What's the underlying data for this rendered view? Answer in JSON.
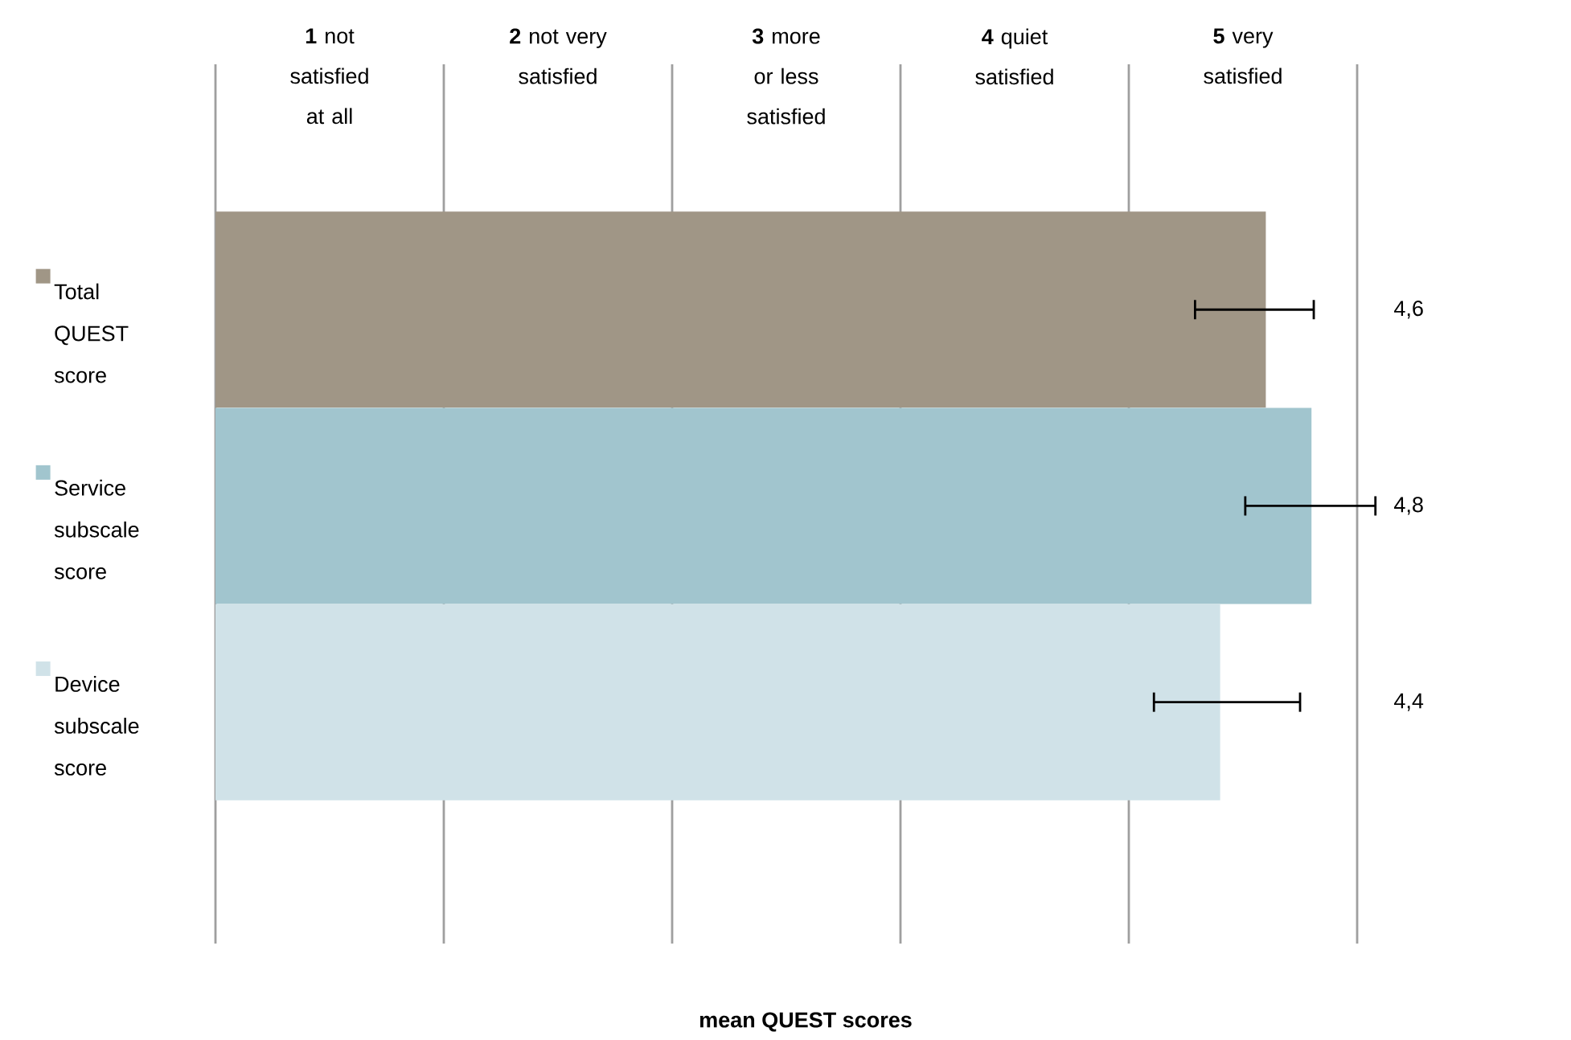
{
  "chart_data": {
    "type": "bar",
    "orientation": "horizontal",
    "xlabel": "mean QUEST scores",
    "categories": [
      "Total QUEST score",
      "Service subscale score",
      "Device subscale score"
    ],
    "values": [
      4.6,
      4.8,
      4.4
    ],
    "colors": [
      "#a09686",
      "#a1c5ce",
      "#d0e2e8"
    ],
    "errors": [
      [
        4.29,
        4.81
      ],
      [
        4.51,
        5.08
      ],
      [
        4.11,
        4.75
      ]
    ],
    "value_labels": [
      "4,6",
      "4,8",
      "4,4"
    ],
    "xlim": [
      0,
      5
    ],
    "xticks": [
      {
        "value": 0,
        "label": null
      },
      {
        "value": 0.5,
        "label": "**1** not satisfied at all"
      },
      {
        "value": 1,
        "label": null
      },
      {
        "value": 1.5,
        "label": "**2** not very satisfied"
      },
      {
        "value": 2,
        "label": null
      },
      {
        "value": 2.5,
        "label": "**3** more or less satisfied"
      },
      {
        "value": 3,
        "label": null
      },
      {
        "value": 3.5,
        "label": "**4** quiet satisfied"
      },
      {
        "value": 4,
        "label": null
      },
      {
        "value": 4.5,
        "label": "**5** very satisfied"
      },
      {
        "value": 5,
        "label": null
      }
    ],
    "grid": "x"
  }
}
